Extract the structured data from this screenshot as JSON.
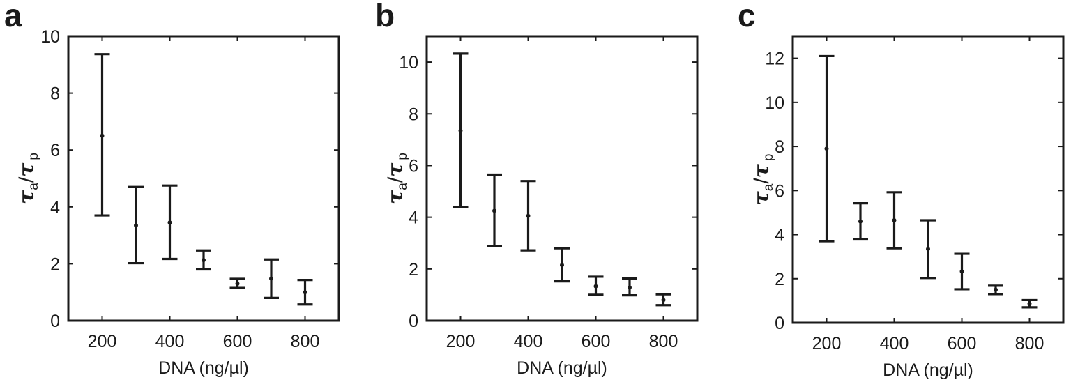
{
  "chart_data": [
    {
      "type": "scatter",
      "panel_label": "a",
      "xlabel": "DNA (ng/µl)",
      "ylabel": {
        "symbol": "τ",
        "sub_num": "a",
        "sub_den": "p"
      },
      "xlim": [
        100,
        900
      ],
      "ylim": [
        0,
        10
      ],
      "xticks": [
        200,
        400,
        600,
        800
      ],
      "yticks": [
        0,
        2,
        4,
        6,
        8,
        10
      ],
      "grid": false,
      "x": [
        200,
        300,
        400,
        500,
        600,
        700,
        800
      ],
      "y": [
        6.5,
        3.35,
        3.45,
        2.13,
        1.3,
        1.48,
        1.0
      ],
      "err_low": [
        3.7,
        2.02,
        2.17,
        1.8,
        1.15,
        0.8,
        0.57
      ],
      "err_high": [
        9.37,
        4.7,
        4.75,
        2.47,
        1.47,
        2.15,
        1.43
      ]
    },
    {
      "type": "scatter",
      "panel_label": "b",
      "xlabel": "DNA (ng/µl)",
      "ylabel": {
        "symbol": "τ",
        "sub_num": "a",
        "sub_den": "p"
      },
      "xlim": [
        100,
        900
      ],
      "ylim": [
        0,
        11
      ],
      "xticks": [
        200,
        400,
        600,
        800
      ],
      "yticks": [
        0,
        2,
        4,
        6,
        8,
        10
      ],
      "grid": false,
      "x": [
        200,
        300,
        400,
        500,
        600,
        700,
        800
      ],
      "y": [
        7.35,
        4.25,
        4.05,
        2.15,
        1.33,
        1.28,
        0.8
      ],
      "err_low": [
        4.4,
        2.88,
        2.72,
        1.52,
        1.0,
        0.98,
        0.6
      ],
      "err_high": [
        10.33,
        5.65,
        5.4,
        2.8,
        1.7,
        1.63,
        1.02
      ]
    },
    {
      "type": "scatter",
      "panel_label": "c",
      "xlabel": "DNA (ng/µl)",
      "ylabel": {
        "symbol": "τ",
        "sub_num": "a",
        "sub_den": "p"
      },
      "xlim": [
        100,
        900
      ],
      "ylim": [
        0,
        13
      ],
      "xticks": [
        200,
        400,
        600,
        800
      ],
      "yticks": [
        0,
        2,
        4,
        6,
        8,
        10,
        12
      ],
      "grid": false,
      "x": [
        200,
        300,
        400,
        500,
        600,
        700,
        800
      ],
      "y": [
        7.9,
        4.6,
        4.65,
        3.35,
        2.33,
        1.5,
        0.87
      ],
      "err_low": [
        3.7,
        3.78,
        3.38,
        2.03,
        1.52,
        1.3,
        0.7
      ],
      "err_high": [
        12.1,
        5.42,
        5.92,
        4.65,
        3.13,
        1.68,
        1.03
      ]
    }
  ]
}
